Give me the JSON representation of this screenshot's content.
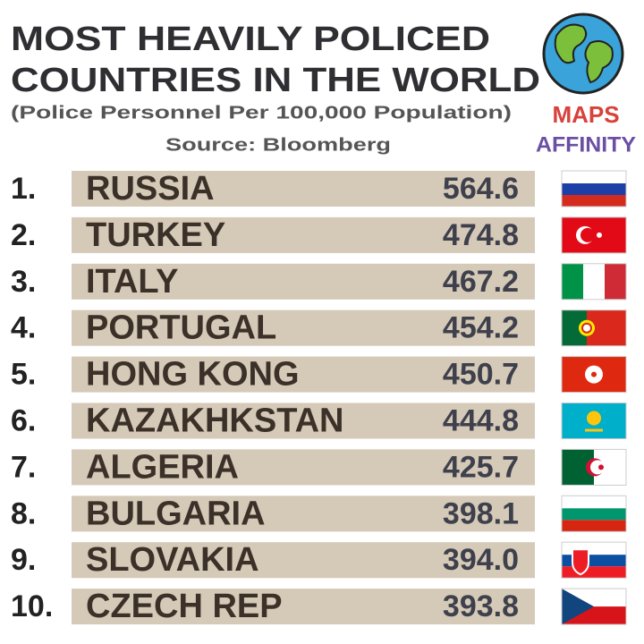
{
  "header": {
    "title_lines": [
      "MOST HEAVILY POLICED",
      "COUNTRIES IN THE WORLD"
    ],
    "subtitle": "(Police Personnel Per 100,000 Population)",
    "source": "Source: Bloomberg"
  },
  "logo": {
    "line1": "MAPS",
    "line2": "AFFINITY"
  },
  "rows": [
    {
      "rank": "1.",
      "country": "RUSSIA",
      "value": "564.6"
    },
    {
      "rank": "2.",
      "country": "TURKEY",
      "value": "474.8"
    },
    {
      "rank": "3.",
      "country": "ITALY",
      "value": "467.2"
    },
    {
      "rank": "4.",
      "country": "PORTUGAL",
      "value": "454.2"
    },
    {
      "rank": "5.",
      "country": "HONG KONG",
      "value": "450.7"
    },
    {
      "rank": "6.",
      "country": "KAZAKHKSTAN",
      "value": "444.8"
    },
    {
      "rank": "7.",
      "country": "ALGERIA",
      "value": "425.7"
    },
    {
      "rank": "8.",
      "country": "BULGARIA",
      "value": "398.1"
    },
    {
      "rank": "9.",
      "country": "SLOVAKIA",
      "value": "394.0"
    },
    {
      "rank": "10.",
      "country": "CZECH REP",
      "value": "393.8"
    }
  ]
}
